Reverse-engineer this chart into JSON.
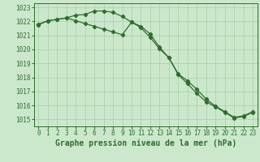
{
  "line1": {
    "x": [
      0,
      1,
      2,
      3,
      4,
      5,
      6,
      7,
      8,
      9,
      10,
      11,
      12,
      13,
      14,
      15,
      16,
      17,
      18,
      19,
      20,
      21,
      22,
      23
    ],
    "y": [
      1021.8,
      1022.05,
      1022.15,
      1022.25,
      1022.45,
      1022.5,
      1022.75,
      1022.75,
      1022.65,
      1022.35,
      1021.95,
      1021.55,
      1020.85,
      1020.05,
      1019.4,
      1018.25,
      1017.75,
      1017.15,
      1016.45,
      1015.95,
      1015.55,
      1015.15,
      1015.25,
      1015.55
    ]
  },
  "line2": {
    "x": [
      0,
      1,
      2,
      3,
      4,
      5,
      6,
      7,
      8,
      9,
      10,
      11,
      12,
      13,
      14,
      15,
      16,
      17,
      18,
      19,
      20,
      21,
      22,
      23
    ],
    "y": [
      1021.75,
      1022.05,
      1022.15,
      1022.25,
      1022.05,
      1021.85,
      1021.65,
      1021.45,
      1021.25,
      1021.05,
      1021.95,
      1021.65,
      1021.1,
      1020.15,
      1019.4,
      1018.2,
      1017.55,
      1016.85,
      1016.25,
      1015.9,
      1015.5,
      1015.1,
      1015.2,
      1015.5
    ]
  },
  "line_color": "#2d6e2d",
  "bg_color": "#cce8cc",
  "grid_color": "#a8cca8",
  "text_color": "#2d6e2d",
  "xlabel": "Graphe pression niveau de la mer (hPa)",
  "ylim": [
    1014.5,
    1023.3
  ],
  "yticks": [
    1015,
    1016,
    1017,
    1018,
    1019,
    1020,
    1021,
    1022,
    1023
  ],
  "xticks": [
    0,
    1,
    2,
    3,
    4,
    5,
    6,
    7,
    8,
    9,
    10,
    11,
    12,
    13,
    14,
    15,
    16,
    17,
    18,
    19,
    20,
    21,
    22,
    23
  ],
  "tick_fontsize": 5.5,
  "label_fontsize": 7.0
}
